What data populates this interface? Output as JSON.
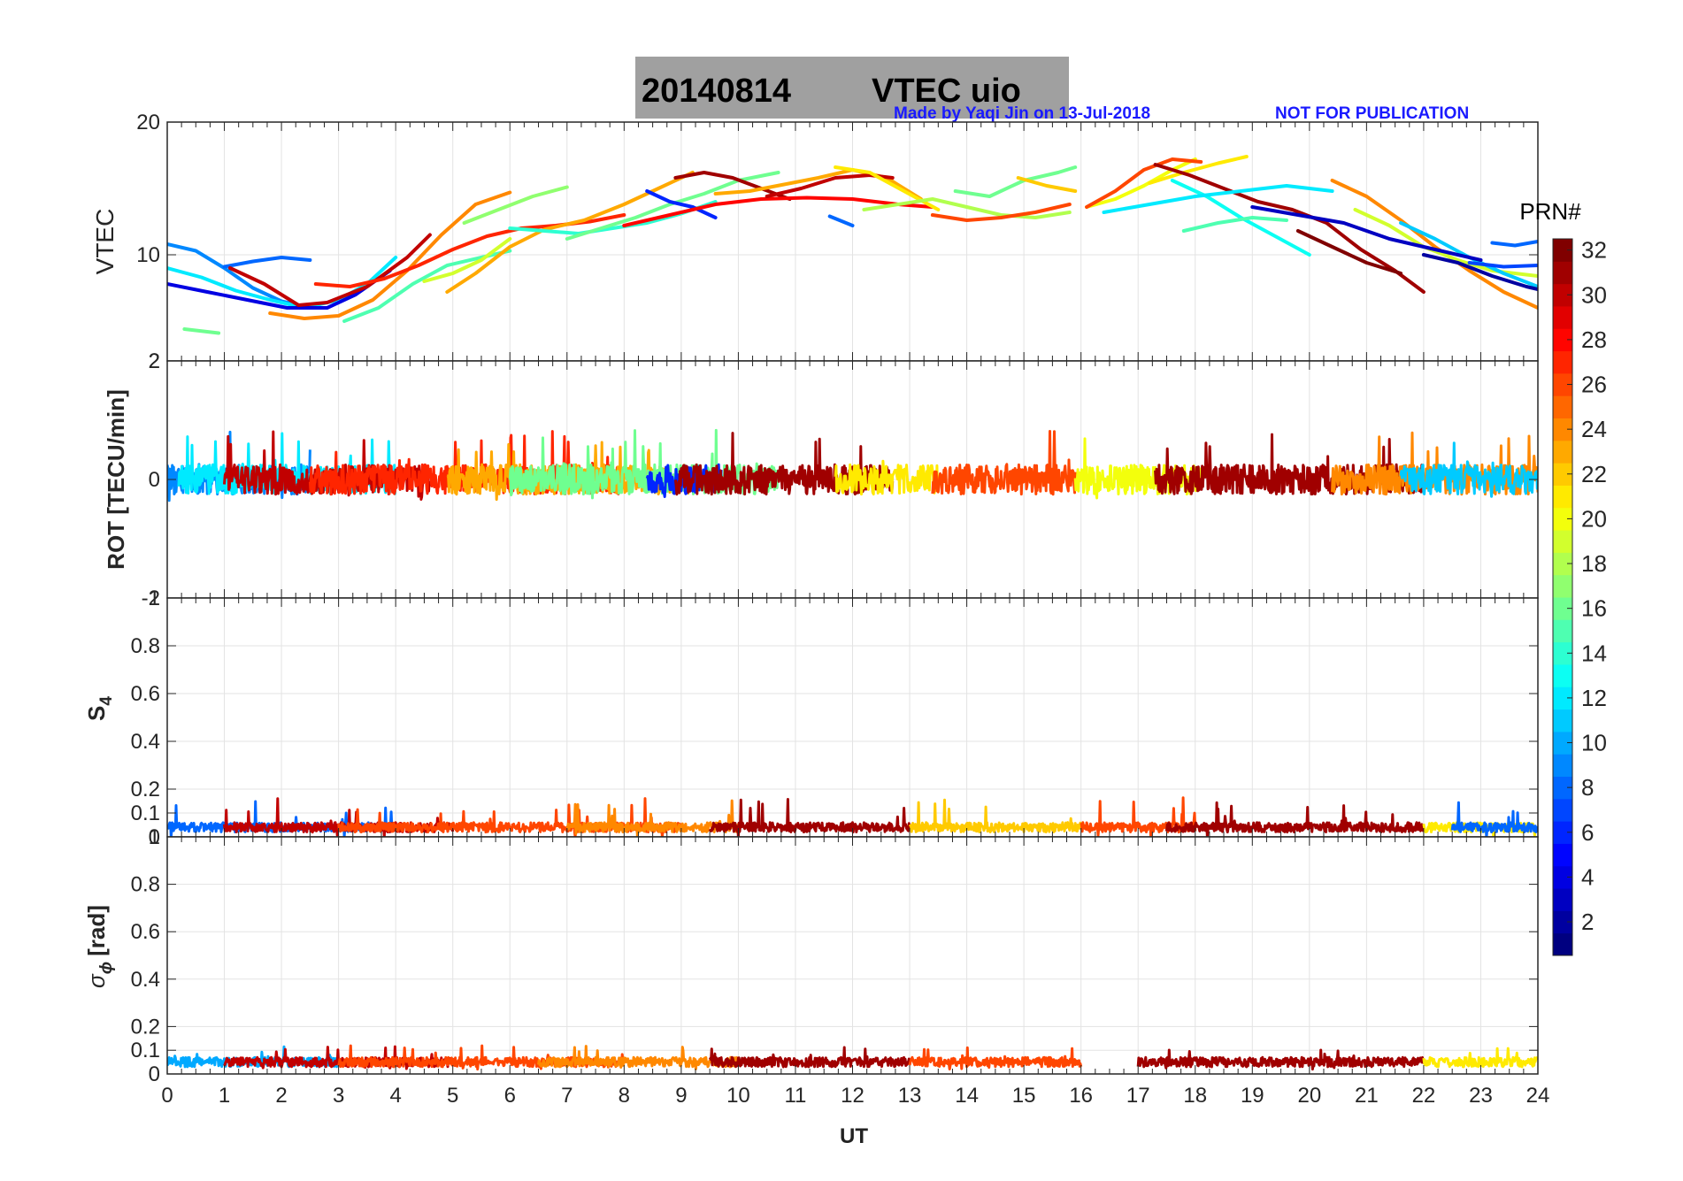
{
  "title": {
    "date": "20140814",
    "label": "VTEC  uio",
    "box_color": "#a0a0a0"
  },
  "credit": "Made by Yaqi Jin on 13-Jul-2018",
  "notice": "NOT FOR PUBLICATION",
  "credit_color": "#1a1aff",
  "x_axis": {
    "label": "UT",
    "ticks": [
      "0",
      "1",
      "2",
      "3",
      "4",
      "5",
      "6",
      "7",
      "8",
      "9",
      "10",
      "11",
      "12",
      "13",
      "14",
      "15",
      "16",
      "17",
      "18",
      "19",
      "20",
      "21",
      "22",
      "23",
      "24"
    ]
  },
  "colorbar": {
    "title": "PRN#",
    "ticks": [
      "2",
      "4",
      "6",
      "8",
      "10",
      "12",
      "14",
      "16",
      "18",
      "20",
      "22",
      "24",
      "26",
      "28",
      "30",
      "32"
    ],
    "range": [
      1,
      32
    ],
    "colormap": "jet"
  },
  "chart_data": [
    {
      "type": "line",
      "panel": "VTEC",
      "ylabel": "VTEC",
      "xlim": [
        0,
        24
      ],
      "ylim": [
        2,
        20
      ],
      "yticks": [
        "20",
        "10",
        "2"
      ],
      "grid": true,
      "series": [
        {
          "prn": 9,
          "x": [
            0,
            0.5,
            1.0,
            1.5,
            2.0,
            2.5
          ],
          "y": [
            10.8,
            10.3,
            9.0,
            7.5,
            6.5,
            6.0
          ]
        },
        {
          "prn": 12,
          "x": [
            0,
            0.6,
            1.2,
            1.8,
            2.4,
            3.0,
            3.5,
            4.0
          ],
          "y": [
            9.0,
            8.3,
            7.3,
            6.6,
            6.0,
            6.6,
            7.8,
            9.8
          ]
        },
        {
          "prn": 4,
          "x": [
            0,
            0.7,
            1.4,
            2.1,
            2.8,
            3.3,
            3.9
          ],
          "y": [
            7.8,
            7.2,
            6.6,
            6.0,
            6.0,
            7.0,
            8.8
          ]
        },
        {
          "prn": 8,
          "x": [
            1.0,
            1.5,
            2.0,
            2.5
          ],
          "y": [
            9.1,
            9.5,
            9.8,
            9.6
          ]
        },
        {
          "prn": 16,
          "x": [
            0.3,
            0.9
          ],
          "y": [
            4.4,
            4.1
          ]
        },
        {
          "prn": 30,
          "x": [
            1.1,
            1.7,
            2.3,
            2.8,
            3.5,
            4.2,
            4.6
          ],
          "y": [
            9.0,
            7.8,
            6.2,
            6.4,
            7.6,
            9.8,
            11.5
          ]
        },
        {
          "prn": 24,
          "x": [
            1.8,
            2.4,
            3.0,
            3.6,
            4.2,
            4.8,
            5.4,
            6.0
          ],
          "y": [
            5.6,
            5.2,
            5.4,
            6.6,
            8.8,
            11.5,
            13.8,
            14.7
          ]
        },
        {
          "prn": 27,
          "x": [
            2.6,
            3.2,
            3.8,
            4.4,
            5.0,
            5.6,
            6.2,
            6.8,
            7.4,
            8.0
          ],
          "y": [
            7.8,
            7.6,
            8.2,
            9.2,
            10.4,
            11.4,
            12.0,
            12.2,
            12.5,
            13.0
          ]
        },
        {
          "prn": 15,
          "x": [
            3.1,
            3.7,
            4.3,
            4.9,
            5.5,
            6.0
          ],
          "y": [
            5.0,
            6.0,
            7.8,
            9.2,
            9.8,
            10.3
          ]
        },
        {
          "prn": 17,
          "x": [
            5.2,
            5.8,
            6.4,
            7.0
          ],
          "y": [
            12.4,
            13.4,
            14.4,
            15.1
          ]
        },
        {
          "prn": 19,
          "x": [
            4.5,
            5.0,
            5.5,
            6.0
          ],
          "y": [
            8.0,
            8.6,
            9.6,
            11.2
          ]
        },
        {
          "prn": 23,
          "x": [
            4.9,
            5.4,
            6.0,
            6.6,
            7.3,
            8.0,
            8.6,
            9.2
          ],
          "y": [
            7.2,
            8.6,
            10.6,
            11.9,
            12.6,
            13.8,
            15.0,
            16.2
          ]
        },
        {
          "prn": 14,
          "x": [
            6.0,
            6.6,
            7.2,
            7.8,
            8.4,
            9.0,
            9.6
          ],
          "y": [
            12.0,
            11.8,
            11.6,
            12.0,
            12.4,
            13.1,
            14.0
          ]
        },
        {
          "prn": 16,
          "x": [
            7.0,
            7.6,
            8.2,
            8.8,
            9.4,
            10.0,
            10.7
          ],
          "y": [
            11.2,
            12.0,
            12.8,
            13.8,
            14.6,
            15.6,
            16.2
          ]
        },
        {
          "prn": 6,
          "x": [
            8.4,
            8.8,
            9.2,
            9.6
          ],
          "y": [
            14.8,
            14.0,
            13.6,
            12.8
          ]
        },
        {
          "prn": 31,
          "x": [
            8.9,
            9.4,
            9.9,
            10.4,
            10.9
          ],
          "y": [
            15.8,
            16.2,
            15.8,
            15.0,
            14.2
          ]
        },
        {
          "prn": 28,
          "x": [
            8.0,
            8.8,
            9.6,
            10.4,
            11.2,
            12.0,
            12.8,
            13.4
          ],
          "y": [
            12.2,
            13.0,
            13.8,
            14.2,
            14.3,
            14.2,
            13.8,
            13.6
          ]
        },
        {
          "prn": 23,
          "x": [
            9.6,
            10.2,
            10.8,
            11.4,
            12.0,
            12.6,
            13.2
          ],
          "y": [
            14.6,
            14.8,
            15.3,
            15.8,
            16.4,
            15.8,
            14.2
          ]
        },
        {
          "prn": 30,
          "x": [
            10.5,
            11.1,
            11.7,
            12.3,
            12.7
          ],
          "y": [
            14.4,
            15.0,
            15.8,
            16.0,
            15.8
          ]
        },
        {
          "prn": 21,
          "x": [
            11.7,
            12.3,
            12.9,
            13.5
          ],
          "y": [
            16.6,
            16.2,
            14.8,
            13.4
          ]
        },
        {
          "prn": 8,
          "x": [
            11.6,
            12.0
          ],
          "y": [
            12.9,
            12.2
          ]
        },
        {
          "prn": 18,
          "x": [
            12.2,
            12.8,
            13.4,
            14.0,
            14.6,
            15.2,
            15.8
          ],
          "y": [
            13.4,
            13.8,
            14.2,
            13.6,
            13.0,
            12.8,
            13.2
          ]
        },
        {
          "prn": 26,
          "x": [
            13.4,
            14.0,
            14.6,
            15.2,
            15.8
          ],
          "y": [
            13.0,
            12.6,
            12.8,
            13.2,
            13.8
          ]
        },
        {
          "prn": 16,
          "x": [
            13.8,
            14.4,
            15.0,
            15.6,
            15.9
          ],
          "y": [
            14.8,
            14.4,
            15.6,
            16.2,
            16.6
          ]
        },
        {
          "prn": 22,
          "x": [
            14.9,
            15.4,
            15.9
          ],
          "y": [
            15.8,
            15.2,
            14.8
          ]
        },
        {
          "prn": 20,
          "x": [
            16.1,
            16.6,
            17.1,
            17.6,
            18.0
          ],
          "y": [
            13.6,
            14.2,
            15.2,
            16.4,
            17.2
          ]
        },
        {
          "prn": 26,
          "x": [
            16.1,
            16.6,
            17.1,
            17.6,
            18.1
          ],
          "y": [
            13.6,
            14.8,
            16.4,
            17.2,
            17.0
          ]
        },
        {
          "prn": 21,
          "x": [
            17.2,
            17.8,
            18.4,
            18.9
          ],
          "y": [
            15.4,
            16.2,
            16.9,
            17.4
          ]
        },
        {
          "prn": 31,
          "x": [
            17.3,
            17.9,
            18.5,
            19.1,
            19.7,
            20.3,
            20.9,
            21.5,
            22.0
          ],
          "y": [
            16.8,
            16.0,
            15.0,
            14.0,
            13.4,
            12.4,
            10.4,
            8.8,
            7.2
          ]
        },
        {
          "prn": 32,
          "x": [
            19.8,
            20.4,
            21.0,
            21.6
          ],
          "y": [
            11.8,
            10.6,
            9.4,
            8.6
          ]
        },
        {
          "prn": 13,
          "x": [
            17.6,
            18.2,
            18.8,
            19.4,
            20.0
          ],
          "y": [
            15.6,
            14.4,
            12.8,
            11.4,
            10.0
          ]
        },
        {
          "prn": 15,
          "x": [
            17.8,
            18.4,
            19.0,
            19.6
          ],
          "y": [
            11.8,
            12.4,
            12.8,
            12.6
          ]
        },
        {
          "prn": 12,
          "x": [
            16.4,
            17.2,
            18.0,
            18.8,
            19.6,
            20.4
          ],
          "y": [
            13.2,
            13.8,
            14.4,
            14.8,
            15.2,
            14.8
          ]
        },
        {
          "prn": 24,
          "x": [
            20.4,
            21.0,
            21.6,
            22.2,
            22.8,
            23.4,
            24.0
          ],
          "y": [
            15.6,
            14.4,
            12.6,
            10.6,
            8.8,
            7.2,
            6.0
          ]
        },
        {
          "prn": 19,
          "x": [
            20.8,
            21.4,
            22.0,
            22.6,
            23.2,
            24.0
          ],
          "y": [
            13.4,
            12.2,
            10.6,
            9.6,
            8.8,
            8.4
          ]
        },
        {
          "prn": 11,
          "x": [
            21.6,
            22.2,
            22.8,
            23.4,
            24.0
          ],
          "y": [
            12.4,
            11.2,
            9.8,
            8.6,
            7.6
          ]
        },
        {
          "prn": 3,
          "x": [
            19.0,
            19.8,
            20.6,
            21.4,
            22.2,
            23.0
          ],
          "y": [
            13.6,
            13.0,
            12.4,
            11.2,
            10.4,
            9.6
          ]
        },
        {
          "prn": 7,
          "x": [
            22.8,
            23.4,
            24.0
          ],
          "y": [
            9.4,
            9.1,
            9.2
          ]
        },
        {
          "prn": 8,
          "x": [
            23.2,
            23.6,
            24.0
          ],
          "y": [
            10.9,
            10.7,
            11.0
          ]
        },
        {
          "prn": 2,
          "x": [
            22.0,
            22.6,
            23.2,
            23.8,
            24.0
          ],
          "y": [
            10.0,
            9.4,
            8.4,
            7.6,
            7.4
          ]
        }
      ]
    },
    {
      "type": "line",
      "panel": "ROT",
      "ylabel": "ROT [TECU/min]",
      "xlim": [
        0,
        24
      ],
      "ylim": [
        -2,
        2
      ],
      "yticks": [
        "2",
        "0",
        "-2"
      ],
      "grid": true,
      "band": {
        "center": 0,
        "spread": 0.25,
        "spike_max": 0.6
      },
      "segments": [
        {
          "prn": 9,
          "start": 0,
          "end": 2.5
        },
        {
          "prn": 12,
          "start": 0.2,
          "end": 4.0
        },
        {
          "prn": 30,
          "start": 1.0,
          "end": 4.6
        },
        {
          "prn": 27,
          "start": 2.5,
          "end": 8.0
        },
        {
          "prn": 23,
          "start": 4.9,
          "end": 9.2
        },
        {
          "prn": 16,
          "start": 6.0,
          "end": 10.7
        },
        {
          "prn": 6,
          "start": 8.4,
          "end": 9.7
        },
        {
          "prn": 31,
          "start": 8.9,
          "end": 12.7
        },
        {
          "prn": 21,
          "start": 11.7,
          "end": 13.5
        },
        {
          "prn": 26,
          "start": 13.4,
          "end": 15.9
        },
        {
          "prn": 20,
          "start": 15.9,
          "end": 18.1
        },
        {
          "prn": 31,
          "start": 17.3,
          "end": 22.0
        },
        {
          "prn": 24,
          "start": 20.4,
          "end": 24.0
        },
        {
          "prn": 11,
          "start": 21.6,
          "end": 24.0
        }
      ]
    },
    {
      "type": "line",
      "panel": "S4",
      "ylabel": "S",
      "ylabel_sub": "4",
      "xlim": [
        0,
        24
      ],
      "ylim": [
        0,
        1
      ],
      "yticks": [
        "1",
        "0.8",
        "0.6",
        "0.4",
        "0.2",
        "0.1",
        "0"
      ],
      "grid": true,
      "band": {
        "center": 0.04,
        "spread": 0.02,
        "spike_max": 0.13
      },
      "segments": [
        {
          "prn": 8,
          "start": 0,
          "end": 4.0
        },
        {
          "prn": 30,
          "start": 1.0,
          "end": 5.0
        },
        {
          "prn": 26,
          "start": 3.0,
          "end": 9.0
        },
        {
          "prn": 24,
          "start": 7.0,
          "end": 10.0
        },
        {
          "prn": 31,
          "start": 9.5,
          "end": 13.0
        },
        {
          "prn": 22,
          "start": 13.0,
          "end": 16.0
        },
        {
          "prn": 26,
          "start": 16.0,
          "end": 18.0
        },
        {
          "prn": 31,
          "start": 17.5,
          "end": 22.0
        },
        {
          "prn": 21,
          "start": 22.0,
          "end": 24.0
        },
        {
          "prn": 8,
          "start": 22.5,
          "end": 24.0
        }
      ]
    },
    {
      "type": "line",
      "panel": "SigmaPhi",
      "ylabel": "σ",
      "ylabel_sub": "ϕ",
      "ylabel_unit": "[rad]",
      "xlim": [
        0,
        24
      ],
      "ylim": [
        0,
        1
      ],
      "yticks": [
        "1",
        "0.8",
        "0.6",
        "0.4",
        "0.2",
        "0.1",
        "0"
      ],
      "grid": true,
      "band": {
        "center": 0.05,
        "spread": 0.02,
        "spike_max": 0.1
      },
      "segments": [
        {
          "prn": 10,
          "start": 0,
          "end": 3.0
        },
        {
          "prn": 30,
          "start": 1.0,
          "end": 5.0
        },
        {
          "prn": 26,
          "start": 3.0,
          "end": 8.0
        },
        {
          "prn": 24,
          "start": 6.5,
          "end": 10.0
        },
        {
          "prn": 31,
          "start": 9.5,
          "end": 13.0
        },
        {
          "prn": 26,
          "start": 13.0,
          "end": 16.0
        },
        {
          "prn": 31,
          "start": 17.0,
          "end": 22.0
        },
        {
          "prn": 21,
          "start": 22.0,
          "end": 24.0
        }
      ]
    }
  ]
}
